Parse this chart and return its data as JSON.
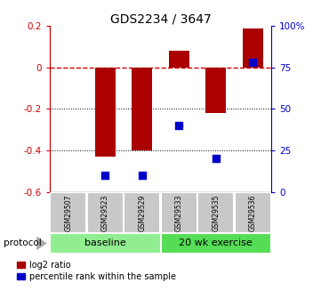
{
  "title": "GDS2234 / 3647",
  "samples": [
    "GSM29507",
    "GSM29523",
    "GSM29529",
    "GSM29533",
    "GSM29535",
    "GSM29536"
  ],
  "log2_ratio": [
    0.0,
    -0.43,
    -0.4,
    0.08,
    -0.22,
    0.19
  ],
  "percentile_rank": [
    null,
    10.0,
    10.0,
    40.0,
    20.0,
    78.0
  ],
  "baseline_color": "#90EE90",
  "exercise_color": "#55DD55",
  "ylim_left": [
    -0.6,
    0.2
  ],
  "ylim_right": [
    0,
    100
  ],
  "bar_color": "#AA0000",
  "dot_color": "#0000CC",
  "dashed_line_color": "#CC0000",
  "sample_box_color": "#C8C8C8",
  "bar_width": 0.55,
  "dot_size": 40,
  "left_ticks": [
    -0.6,
    -0.4,
    -0.2,
    0.0,
    0.2
  ],
  "left_tick_labels": [
    "-0.6",
    "-0.4",
    "-0.2",
    "0",
    "0.2"
  ],
  "right_ticks": [
    0,
    25,
    50,
    75,
    100
  ],
  "right_tick_labels": [
    "0",
    "25",
    "50",
    "75",
    "100%"
  ]
}
